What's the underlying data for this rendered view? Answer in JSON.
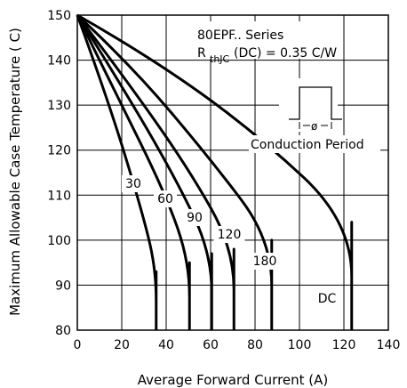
{
  "chart_data": {
    "type": "line",
    "title": "",
    "xlabel": "Average Forward Current (A)",
    "ylabel": "Maximum Allowable Case Temperature ( C)",
    "xlim": [
      0,
      140
    ],
    "ylim": [
      80,
      150
    ],
    "xticks": [
      "0",
      "20",
      "40",
      "60",
      "80",
      "100",
      "120",
      "140"
    ],
    "yticks": [
      "80",
      "90",
      "100",
      "110",
      "120",
      "130",
      "140",
      "150"
    ],
    "grid": true,
    "annotations": {
      "series_name": "80EPF.. Series",
      "rthjc_symbol": "R",
      "rthjc_subscript": "thJC",
      "rthjc_value": "(DC) = 0.35  C/W",
      "phi": "ø",
      "conduction": "Conduction Period"
    },
    "series": [
      {
        "name": "30",
        "x": [
          0,
          14,
          30,
          35.5,
          35.5
        ],
        "y": [
          150,
          131,
          105,
          93,
          80
        ]
      },
      {
        "name": "60",
        "x": [
          0,
          16,
          40,
          50.5,
          50.5
        ],
        "y": [
          150,
          134,
          110,
          95,
          80
        ]
      },
      {
        "name": "90",
        "x": [
          0,
          18,
          44,
          60.5,
          60.5
        ],
        "y": [
          150,
          136,
          114,
          97,
          80
        ]
      },
      {
        "name": "120",
        "x": [
          0,
          20,
          50,
          70.5,
          70.5
        ],
        "y": [
          150,
          137,
          116,
          98,
          80
        ]
      },
      {
        "name": "180",
        "x": [
          0,
          24,
          60,
          87.5,
          87.5
        ],
        "y": [
          150,
          139,
          118,
          100,
          80
        ]
      },
      {
        "name": "DC",
        "x": [
          0,
          32,
          80,
          123.5,
          123.5
        ],
        "y": [
          150,
          141,
          124,
          104,
          80
        ]
      }
    ]
  }
}
